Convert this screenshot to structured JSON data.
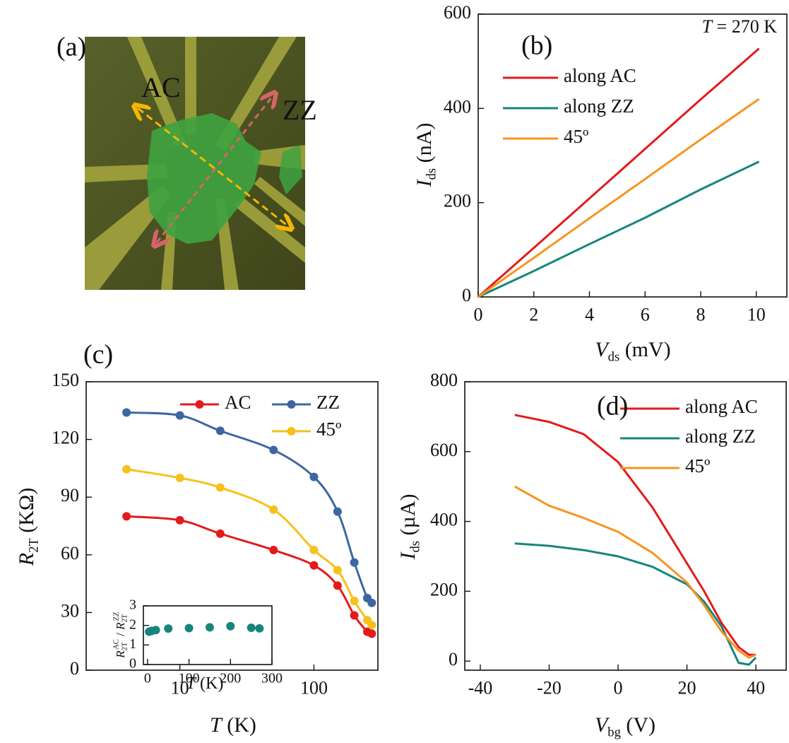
{
  "chart_data": [
    {
      "type": "image",
      "label": "(a)",
      "annotations": [
        {
          "text": "AC",
          "color": "#f2b705"
        },
        {
          "text": "ZZ",
          "color": "#e3201b"
        }
      ]
    },
    {
      "type": "line",
      "label": "(b)",
      "annotation": [
        {
          "text": "T",
          "style": "italic"
        },
        {
          "text": " = 270 K"
        }
      ],
      "xlabel": [
        {
          "text": "V",
          "style": "italic"
        },
        {
          "text": "ds",
          "style": "sub"
        },
        {
          "text": " (mV)"
        }
      ],
      "ylabel": [
        {
          "text": "I",
          "style": "italic"
        },
        {
          "text": "ds",
          "style": "sub"
        },
        {
          "text": " (nA)"
        }
      ],
      "x": [
        0,
        2,
        4,
        6,
        8,
        10.1
      ],
      "series": [
        {
          "name": "along AC",
          "color": "#e41a1c",
          "values": [
            0,
            104,
            209,
            314,
            419,
            527
          ]
        },
        {
          "name": "along ZZ",
          "color": "#16867c",
          "values": [
            0,
            55,
            112,
            168,
            228,
            287
          ]
        },
        {
          "name": "45º",
          "color": "#f7941d",
          "values": [
            0,
            83,
            167,
            250,
            334,
            420
          ]
        }
      ],
      "xlim": [
        0,
        11.1
      ],
      "ylim": [
        0,
        600
      ],
      "xticks": [
        0,
        2,
        4,
        6,
        8,
        10
      ],
      "yticks": [
        0,
        200,
        400,
        600
      ]
    },
    {
      "type": "line",
      "label": "(c)",
      "xlog": true,
      "markers": true,
      "smooth": true,
      "xlabel": [
        {
          "text": "T",
          "style": "italic"
        },
        {
          "text": " (K)"
        }
      ],
      "ylabel": [
        {
          "text": "R",
          "style": "italic"
        },
        {
          "text": "2T",
          "style": "sub"
        },
        {
          "text": " (KΩ)"
        }
      ],
      "x": [
        4,
        10,
        20,
        50,
        100,
        150,
        200,
        250,
        270
      ],
      "series": [
        {
          "name": "AC",
          "color": "#e41a1c",
          "values": [
            80,
            78,
            71,
            62.5,
            54.5,
            44,
            28.5,
            20,
            19
          ]
        },
        {
          "name": "ZZ",
          "color": "#3b67a1",
          "values": [
            134,
            132.5,
            124.5,
            114.5,
            100.5,
            82.5,
            56,
            37.5,
            35
          ]
        },
        {
          "name": "45º",
          "color": "#f6c11a",
          "values": [
            104.5,
            100,
            95,
            83.5,
            62.5,
            52,
            36,
            26,
            23.5
          ]
        }
      ],
      "xlim": [
        2,
        300
      ],
      "ylim": [
        0,
        150
      ],
      "xticks": [
        10,
        100
      ],
      "yticks": [
        0,
        30,
        60,
        90,
        120,
        150
      ],
      "inset": {
        "type": "scatter",
        "color": "#16867c",
        "xlabel": [
          {
            "text": "T",
            "style": "italic"
          },
          {
            "text": " (K)"
          }
        ],
        "ylabel": [
          {
            "text": "R",
            "style": "italic"
          },
          {
            "text": "2T",
            "style": "sub"
          },
          {
            "text": "AC",
            "style": "sup"
          },
          {
            "text": " / "
          },
          {
            "text": "R",
            "style": "italic"
          },
          {
            "text": "2T",
            "style": "sub"
          },
          {
            "text": "ZZ",
            "style": "sup"
          }
        ],
        "x": [
          4,
          10,
          20,
          50,
          100,
          150,
          200,
          250,
          270
        ],
        "values": [
          1.68,
          1.72,
          1.76,
          1.84,
          1.86,
          1.9,
          1.96,
          1.88,
          1.85
        ],
        "xlim": [
          -10,
          300
        ],
        "ylim": [
          0,
          3
        ],
        "xticks": [
          0,
          100,
          200,
          300
        ],
        "yticks": [
          0,
          1,
          2,
          3
        ]
      }
    },
    {
      "type": "line",
      "label": "(d)",
      "xlabel": [
        {
          "text": "V",
          "style": "italic"
        },
        {
          "text": "bg",
          "style": "sub"
        },
        {
          "text": " (V)"
        }
      ],
      "ylabel": [
        {
          "text": "I",
          "style": "italic"
        },
        {
          "text": "ds",
          "style": "sub"
        },
        {
          "text": " (µA)"
        }
      ],
      "x": [
        -30,
        -20,
        -10,
        0,
        10,
        20,
        25,
        30,
        35,
        38,
        40
      ],
      "series": [
        {
          "name": "along AC",
          "color": "#e41a1c",
          "values": [
            705,
            685,
            650,
            570,
            440,
            280,
            200,
            110,
            40,
            18,
            18
          ]
        },
        {
          "name": "along ZZ",
          "color": "#16867c",
          "values": [
            337,
            330,
            318,
            300,
            270,
            220,
            170,
            100,
            -5,
            -10,
            10
          ]
        },
        {
          "name": "45º",
          "color": "#f7941d",
          "values": [
            500,
            445,
            410,
            370,
            310,
            225,
            160,
            85,
            30,
            10,
            18
          ]
        }
      ],
      "xlim": [
        -44.5,
        48.8
      ],
      "ylim": [
        -26,
        800
      ],
      "xticks": [
        -40,
        -20,
        0,
        20,
        40
      ],
      "yticks": [
        0,
        200,
        400,
        600,
        800
      ]
    }
  ]
}
